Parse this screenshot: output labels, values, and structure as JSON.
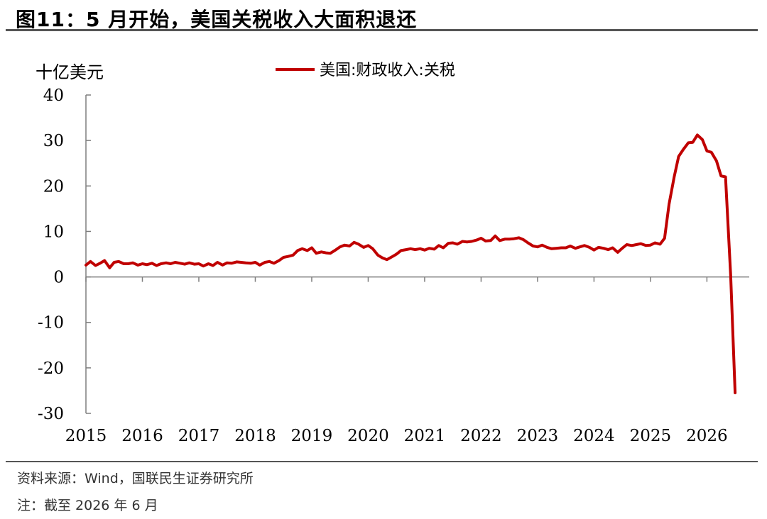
{
  "figure": {
    "title": "图11：5 月开始，美国关税收入大面积退还",
    "source": "资料来源：Wind，国联民生证券研究所",
    "note": "注：截至 2026 年 6 月"
  },
  "colors": {
    "series": "#C00000",
    "axis": "#7f7f7f",
    "rule": "#555555"
  },
  "chart_data": {
    "type": "line",
    "title": "",
    "ylabel": "十亿美元",
    "xlabel": "",
    "ylim": [
      -30,
      40
    ],
    "yticks": [
      40,
      30,
      20,
      10,
      0,
      -10,
      -20,
      -30
    ],
    "yticklabels": [
      "40",
      "30",
      "20",
      "10",
      "0",
      "-10",
      "-20",
      "-30"
    ],
    "xlim": [
      2015,
      2026.75
    ],
    "xticks": [
      2015,
      2016,
      2017,
      2018,
      2019,
      2020,
      2021,
      2022,
      2023,
      2024,
      2025,
      2026
    ],
    "xticklabels": [
      "2015",
      "2016",
      "2017",
      "2018",
      "2019",
      "2020",
      "2021",
      "2022",
      "2023",
      "2024",
      "2025",
      "2026"
    ],
    "legend": {
      "position": "top-center"
    },
    "grid": false,
    "series": [
      {
        "name": "美国:财政收入:关税",
        "points": [
          [
            2015.0,
            2.6
          ],
          [
            2015.08,
            3.4
          ],
          [
            2015.17,
            2.5
          ],
          [
            2015.25,
            3.0
          ],
          [
            2015.33,
            3.6
          ],
          [
            2015.42,
            2.0
          ],
          [
            2015.5,
            3.2
          ],
          [
            2015.58,
            3.4
          ],
          [
            2015.67,
            2.9
          ],
          [
            2015.75,
            2.9
          ],
          [
            2015.83,
            3.1
          ],
          [
            2015.92,
            2.6
          ],
          [
            2016.0,
            2.9
          ],
          [
            2016.08,
            2.7
          ],
          [
            2016.17,
            3.0
          ],
          [
            2016.25,
            2.5
          ],
          [
            2016.33,
            2.9
          ],
          [
            2016.42,
            3.1
          ],
          [
            2016.5,
            2.9
          ],
          [
            2016.58,
            3.2
          ],
          [
            2016.67,
            3.0
          ],
          [
            2016.75,
            2.8
          ],
          [
            2016.83,
            3.1
          ],
          [
            2016.92,
            2.8
          ],
          [
            2017.0,
            2.9
          ],
          [
            2017.08,
            2.4
          ],
          [
            2017.17,
            2.9
          ],
          [
            2017.25,
            2.5
          ],
          [
            2017.33,
            3.2
          ],
          [
            2017.42,
            2.6
          ],
          [
            2017.5,
            3.1
          ],
          [
            2017.58,
            3.0
          ],
          [
            2017.67,
            3.3
          ],
          [
            2017.75,
            3.2
          ],
          [
            2017.83,
            3.1
          ],
          [
            2017.92,
            3.0
          ],
          [
            2018.0,
            3.2
          ],
          [
            2018.08,
            2.6
          ],
          [
            2018.17,
            3.2
          ],
          [
            2018.25,
            3.4
          ],
          [
            2018.33,
            3.0
          ],
          [
            2018.42,
            3.6
          ],
          [
            2018.5,
            4.3
          ],
          [
            2018.58,
            4.5
          ],
          [
            2018.67,
            4.8
          ],
          [
            2018.75,
            5.8
          ],
          [
            2018.83,
            6.2
          ],
          [
            2018.92,
            5.8
          ],
          [
            2019.0,
            6.4
          ],
          [
            2019.08,
            5.2
          ],
          [
            2019.17,
            5.5
          ],
          [
            2019.25,
            5.3
          ],
          [
            2019.33,
            5.2
          ],
          [
            2019.42,
            5.9
          ],
          [
            2019.5,
            6.6
          ],
          [
            2019.58,
            7.0
          ],
          [
            2019.67,
            6.8
          ],
          [
            2019.75,
            7.6
          ],
          [
            2019.83,
            7.2
          ],
          [
            2019.92,
            6.5
          ],
          [
            2020.0,
            6.9
          ],
          [
            2020.08,
            6.2
          ],
          [
            2020.17,
            4.8
          ],
          [
            2020.25,
            4.2
          ],
          [
            2020.33,
            3.8
          ],
          [
            2020.42,
            4.4
          ],
          [
            2020.5,
            5.0
          ],
          [
            2020.58,
            5.8
          ],
          [
            2020.67,
            6.0
          ],
          [
            2020.75,
            6.2
          ],
          [
            2020.83,
            6.0
          ],
          [
            2020.92,
            6.2
          ],
          [
            2021.0,
            5.9
          ],
          [
            2021.08,
            6.3
          ],
          [
            2021.17,
            6.1
          ],
          [
            2021.25,
            6.9
          ],
          [
            2021.33,
            6.4
          ],
          [
            2021.42,
            7.4
          ],
          [
            2021.5,
            7.5
          ],
          [
            2021.58,
            7.2
          ],
          [
            2021.67,
            7.8
          ],
          [
            2021.75,
            7.7
          ],
          [
            2021.83,
            7.8
          ],
          [
            2021.92,
            8.1
          ],
          [
            2022.0,
            8.5
          ],
          [
            2022.08,
            7.9
          ],
          [
            2022.17,
            8.0
          ],
          [
            2022.25,
            9.0
          ],
          [
            2022.33,
            8.0
          ],
          [
            2022.42,
            8.3
          ],
          [
            2022.5,
            8.3
          ],
          [
            2022.58,
            8.4
          ],
          [
            2022.67,
            8.6
          ],
          [
            2022.75,
            8.2
          ],
          [
            2022.83,
            7.5
          ],
          [
            2022.92,
            6.8
          ],
          [
            2023.0,
            6.6
          ],
          [
            2023.08,
            7.0
          ],
          [
            2023.17,
            6.5
          ],
          [
            2023.25,
            6.2
          ],
          [
            2023.33,
            6.3
          ],
          [
            2023.42,
            6.4
          ],
          [
            2023.5,
            6.4
          ],
          [
            2023.58,
            6.8
          ],
          [
            2023.67,
            6.3
          ],
          [
            2023.75,
            6.6
          ],
          [
            2023.83,
            6.9
          ],
          [
            2023.92,
            6.5
          ],
          [
            2024.0,
            5.9
          ],
          [
            2024.08,
            6.5
          ],
          [
            2024.17,
            6.3
          ],
          [
            2024.25,
            6.0
          ],
          [
            2024.33,
            6.4
          ],
          [
            2024.42,
            5.4
          ],
          [
            2024.5,
            6.3
          ],
          [
            2024.58,
            7.1
          ],
          [
            2024.67,
            6.9
          ],
          [
            2024.75,
            7.1
          ],
          [
            2024.83,
            7.3
          ],
          [
            2024.92,
            6.9
          ],
          [
            2025.0,
            7.0
          ],
          [
            2025.08,
            7.5
          ],
          [
            2025.17,
            7.2
          ],
          [
            2025.25,
            8.5
          ],
          [
            2025.33,
            16.0
          ],
          [
            2025.42,
            22.0
          ],
          [
            2025.5,
            26.5
          ],
          [
            2025.58,
            28.0
          ],
          [
            2025.67,
            29.5
          ],
          [
            2025.75,
            29.6
          ],
          [
            2025.83,
            31.2
          ],
          [
            2025.92,
            30.2
          ],
          [
            2026.0,
            27.7
          ],
          [
            2026.08,
            27.4
          ],
          [
            2026.17,
            25.5
          ],
          [
            2026.25,
            22.2
          ],
          [
            2026.33,
            22.0
          ],
          [
            2026.42,
            0.5
          ],
          [
            2026.5,
            -25.5
          ]
        ]
      }
    ]
  }
}
